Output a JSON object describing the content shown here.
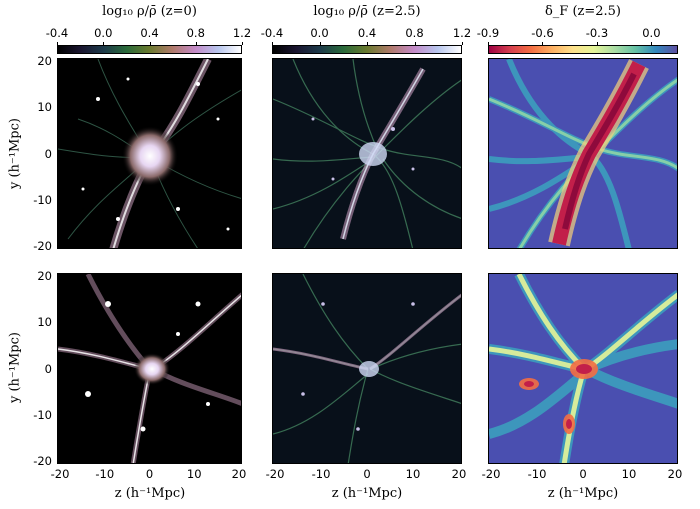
{
  "colorbars": [
    {
      "title": "log₁₀ ρ/ρ̄  (z=0)",
      "ticks": [
        "-0.4",
        "0.0",
        "0.4",
        "0.8",
        "1.2"
      ],
      "colormap": "cubehelix"
    },
    {
      "title": "log₁₀ ρ/ρ̄  (z=2.5)",
      "ticks": [
        "-0.4",
        "0.0",
        "0.4",
        "0.8",
        "1.2"
      ],
      "colormap": "cubehelix"
    },
    {
      "title": "δ_F  (z=2.5)",
      "ticks": [
        "-0.9",
        "-0.6",
        "-0.3",
        "0.0"
      ],
      "colormap": "spectral"
    }
  ],
  "axes": {
    "ylabel": "y  (h⁻¹Mpc)",
    "xlabel": "z  (h⁻¹Mpc)",
    "yticks": [
      "20",
      "10",
      "0",
      "-10",
      "-20"
    ],
    "xticks": [
      "-20",
      "-10",
      "0",
      "10",
      "20"
    ]
  },
  "panels": [
    {
      "row": 1,
      "col": 1,
      "field": "dark matter density, z=0",
      "colormap": "cubehelix"
    },
    {
      "row": 1,
      "col": 2,
      "field": "dark matter density, z=2.5",
      "colormap": "cubehelix"
    },
    {
      "row": 1,
      "col": 3,
      "field": "flux contrast, z=2.5",
      "colormap": "spectral"
    },
    {
      "row": 2,
      "col": 1,
      "field": "dark matter density, z=0",
      "colormap": "cubehelix"
    },
    {
      "row": 2,
      "col": 2,
      "field": "dark matter density, z=2.5",
      "colormap": "cubehelix"
    },
    {
      "row": 2,
      "col": 3,
      "field": "flux contrast, z=2.5",
      "colormap": "spectral"
    }
  ]
}
